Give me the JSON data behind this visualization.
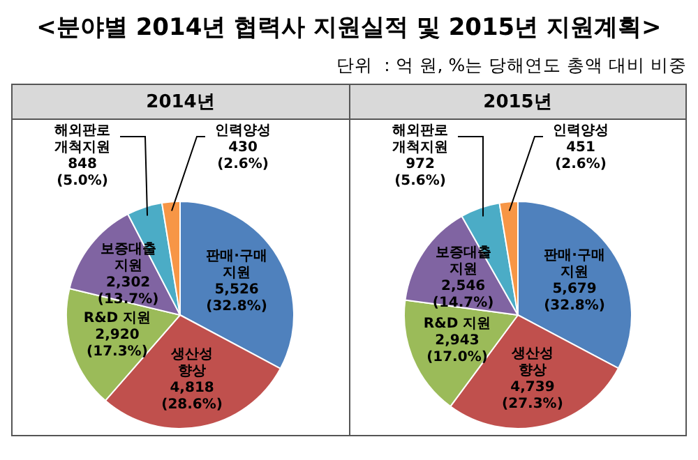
{
  "chart_data": [
    {
      "type": "other",
      "title": "<분야별 2014년 협력사 지원실적 및 2015년 지원계획>",
      "subtitle": "단위  : 억 원, %는 당해연도 총액 대비 비중"
    },
    {
      "type": "pie",
      "title": "2014년",
      "categories": [
        "판매·구매\n지원",
        "생산성\n향상",
        "R&D 지원",
        "보증대출\n지원",
        "해외판로\n개척지원",
        "인력양성"
      ],
      "values": [
        5526,
        4818,
        2920,
        2302,
        848,
        430
      ],
      "colors": [
        "#4f81bd",
        "#c0504d",
        "#9bbb59",
        "#8064a2",
        "#4bacc6",
        "#f79646"
      ],
      "value_labels": [
        "5,526\n(32.8%)",
        "4,818\n(28.6%)",
        "2,920\n(17.3%)",
        "2,302\n(13.7%)",
        "848\n(5.0%)",
        "430\n(2.6%)"
      ]
    },
    {
      "type": "pie",
      "title": "2015년",
      "categories": [
        "판매·구매\n지원",
        "생산성\n향상",
        "R&D 지원",
        "보증대출\n지원",
        "해외판로\n개척지원",
        "인력양성"
      ],
      "values": [
        5679,
        4739,
        2943,
        2546,
        972,
        451
      ],
      "colors": [
        "#4f81bd",
        "#c0504d",
        "#9bbb59",
        "#8064a2",
        "#4bacc6",
        "#f79646"
      ],
      "value_labels": [
        "5,679\n(32.8%)",
        "4,739\n(27.3%)",
        "2,943\n(17.0%)",
        "2,546\n(14.7%)",
        "972\n(5.6%)",
        "451\n(2.6%)"
      ]
    }
  ]
}
